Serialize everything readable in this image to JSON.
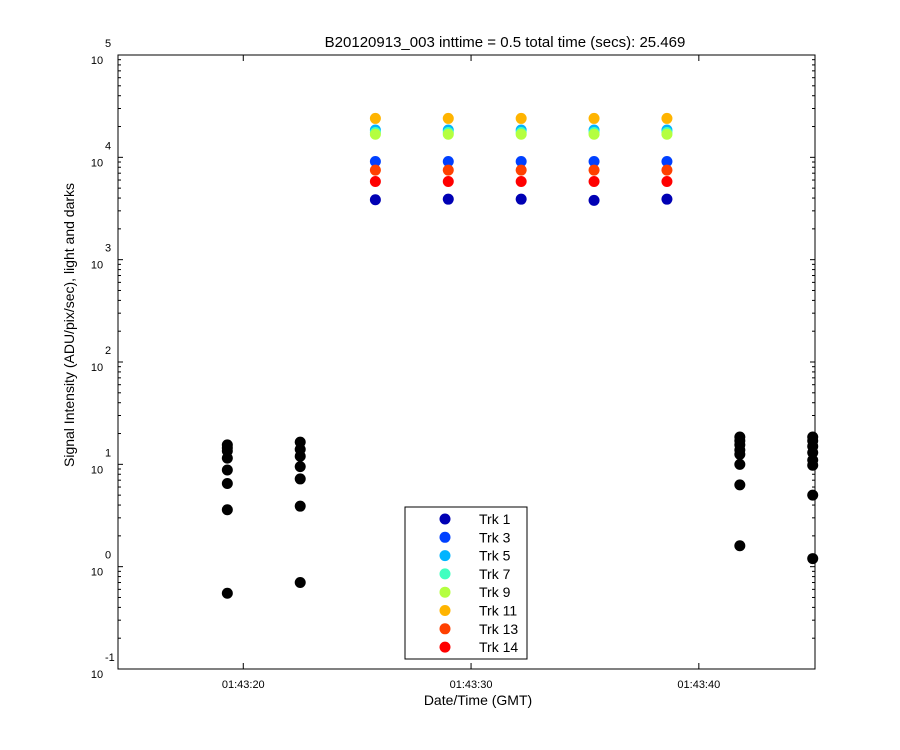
{
  "chart_data": {
    "type": "scatter",
    "title": "B20120913_003 inttime = 0.5 total time (secs): 25.469",
    "xlabel": "Date/Time (GMT)",
    "ylabel": "Signal Intensity (ADU/pix/sec), light and darks",
    "yscale": "log",
    "ylim": [
      0.1,
      100000
    ],
    "xlim": [
      "01:43:14.5",
      "01:43:45.1"
    ],
    "x_tick_labels": [
      "01:43:20",
      "01:43:30",
      "01:43:40"
    ],
    "y_tick_labels": [
      {
        "base": "10",
        "exp": "-1"
      },
      {
        "base": "10",
        "exp": "0"
      },
      {
        "base": "10",
        "exp": "1"
      },
      {
        "base": "10",
        "exp": "2"
      },
      {
        "base": "10",
        "exp": "3"
      },
      {
        "base": "10",
        "exp": "4"
      },
      {
        "base": "10",
        "exp": "5"
      }
    ],
    "grid": false,
    "legend_position": "bottom-center",
    "series": [
      {
        "name": "Trk 1",
        "color": "#0000b4",
        "x": [
          "01:43:25.8",
          "01:43:29.0",
          "01:43:32.2",
          "01:43:35.4",
          "01:43:38.6"
        ],
        "y": [
          3850,
          3900,
          3900,
          3800,
          3900
        ]
      },
      {
        "name": "Trk 3",
        "color": "#0040ff",
        "x": [
          "01:43:25.8",
          "01:43:29.0",
          "01:43:32.2",
          "01:43:35.4",
          "01:43:38.6"
        ],
        "y": [
          9100,
          9100,
          9100,
          9100,
          9100
        ]
      },
      {
        "name": "Trk 5",
        "color": "#00b4ff",
        "x": [
          "01:43:25.8",
          "01:43:29.0",
          "01:43:32.2",
          "01:43:35.4",
          "01:43:38.6"
        ],
        "y": [
          18500,
          18500,
          18500,
          18500,
          18500
        ]
      },
      {
        "name": "Trk 7",
        "color": "#40ffc0",
        "x": [
          "01:43:25.8",
          "01:43:29.0",
          "01:43:32.2",
          "01:43:35.4",
          "01:43:38.6"
        ],
        "y": [
          17500,
          17500,
          17500,
          17500,
          17500
        ]
      },
      {
        "name": "Trk 9",
        "color": "#b4ff40",
        "x": [
          "01:43:25.8",
          "01:43:29.0",
          "01:43:32.2",
          "01:43:35.4",
          "01:43:38.6"
        ],
        "y": [
          16800,
          16800,
          16800,
          16800,
          16800
        ]
      },
      {
        "name": "Trk 11",
        "color": "#ffb400",
        "x": [
          "01:43:25.8",
          "01:43:29.0",
          "01:43:32.2",
          "01:43:35.4",
          "01:43:38.6"
        ],
        "y": [
          24000,
          24000,
          24000,
          24000,
          24000
        ]
      },
      {
        "name": "Trk 13",
        "color": "#ff4000",
        "x": [
          "01:43:25.8",
          "01:43:29.0",
          "01:43:32.2",
          "01:43:35.4",
          "01:43:38.6"
        ],
        "y": [
          7500,
          7500,
          7500,
          7500,
          7500
        ]
      },
      {
        "name": "Trk 14",
        "color": "#ff0000",
        "x": [
          "01:43:25.8",
          "01:43:29.0",
          "01:43:32.2",
          "01:43:35.4",
          "01:43:38.6"
        ],
        "y": [
          5800,
          5800,
          5800,
          5800,
          5800
        ]
      }
    ],
    "darks": {
      "color": "#000000",
      "x": [
        "01:43:19.3",
        "01:43:19.3",
        "01:43:19.3",
        "01:43:19.3",
        "01:43:19.3",
        "01:43:19.3",
        "01:43:19.3",
        "01:43:19.3",
        "01:43:22.5",
        "01:43:22.5",
        "01:43:22.5",
        "01:43:22.5",
        "01:43:22.5",
        "01:43:22.5",
        "01:43:22.5",
        "01:43:41.8",
        "01:43:41.8",
        "01:43:41.8",
        "01:43:41.8",
        "01:43:41.8",
        "01:43:41.8",
        "01:43:41.8",
        "01:43:41.8",
        "01:43:45.0",
        "01:43:45.0",
        "01:43:45.0",
        "01:43:45.0",
        "01:43:45.0",
        "01:43:45.0",
        "01:43:45.0",
        "01:43:45.0"
      ],
      "y": [
        15.5,
        13.5,
        11.5,
        8.8,
        6.5,
        3.6,
        0.55,
        14.5,
        16.5,
        14.0,
        12.0,
        9.5,
        7.2,
        3.9,
        0.7,
        18.5,
        17.0,
        15.5,
        13.8,
        12.5,
        10.0,
        6.3,
        1.6,
        18.5,
        17.0,
        15.0,
        13.0,
        11.0,
        9.8,
        5.0,
        1.2
      ]
    }
  }
}
